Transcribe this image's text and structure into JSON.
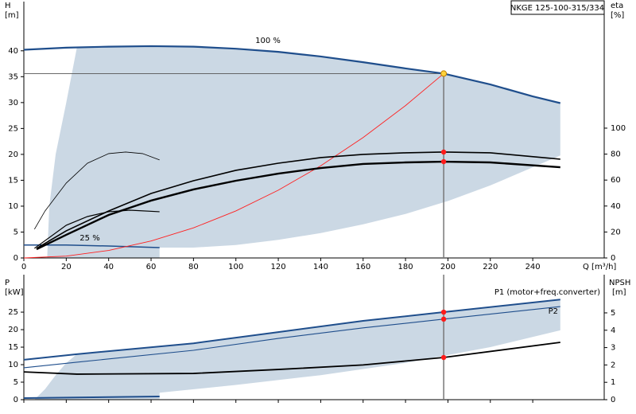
{
  "chart_data": [
    {
      "type": "line",
      "title": "NKGE 125-100-315/334",
      "y_label": "H",
      "y_unit": "[m]",
      "y2_label": "eta",
      "y2_unit": "[%]",
      "x_label": "Q [m³/h]",
      "xlim": [
        0,
        273.7
      ],
      "ylim": [
        0,
        49.5
      ],
      "y2lim": [
        0,
        197.5
      ],
      "xticks": [
        0,
        20,
        40,
        60,
        80,
        100,
        120,
        140,
        160,
        180,
        200,
        220,
        240
      ],
      "yticks": [
        0,
        5,
        10,
        15,
        20,
        25,
        30,
        35,
        40
      ],
      "y2ticks": [
        0,
        20,
        40,
        60,
        80,
        100
      ],
      "annotations": [
        "100 %",
        "25 %"
      ],
      "areas": [
        {
          "color": "#cbd8e4",
          "x": [
            11,
            12,
            15,
            20,
            25,
            40,
            60,
            80,
            100,
            120,
            140,
            160,
            180,
            200,
            220,
            240,
            253,
            253,
            240,
            220,
            200,
            180,
            160,
            140,
            120,
            100,
            80,
            64,
            64
          ],
          "values": [
            0,
            10,
            20,
            30,
            40.6,
            40.8,
            40.9,
            40.8,
            40.4,
            39.8,
            38.9,
            37.8,
            36.6,
            35.4,
            33.5,
            31.2,
            29.9,
            19.8,
            17.5,
            14,
            11,
            8.5,
            6.5,
            4.8,
            3.5,
            2.5,
            2,
            2,
            0
          ]
        }
      ],
      "series": [
        {
          "color": "#1f4e8c",
          "width": 2.2,
          "x": [
            0,
            20,
            40,
            60,
            80,
            100,
            120,
            140,
            160,
            180,
            198,
            220,
            240,
            253
          ],
          "values": [
            40.2,
            40.6,
            40.8,
            40.9,
            40.8,
            40.4,
            39.8,
            38.9,
            37.8,
            36.6,
            35.6,
            33.5,
            31.2,
            29.9
          ]
        },
        {
          "color": "#1f4e8c",
          "width": 1.5,
          "x": [
            0,
            20,
            40,
            64
          ],
          "values": [
            2.5,
            2.5,
            2.3,
            2
          ]
        },
        {
          "color": "#ff2020",
          "width": 0.9,
          "x": [
            0,
            20,
            40,
            60,
            80,
            100,
            120,
            140,
            160,
            180,
            198
          ],
          "values": [
            0,
            0.36,
            1.45,
            3.27,
            5.81,
            9.08,
            13.08,
            17.8,
            23.25,
            29.42,
            35.6
          ]
        },
        {
          "color": "#000000",
          "width": 1.6,
          "axis": "y2",
          "x": [
            6,
            20,
            40,
            60,
            80,
            100,
            120,
            140,
            160,
            180,
            198,
            220,
            253
          ],
          "values": [
            7.4,
            20.9,
            36.2,
            49.7,
            59.5,
            67.5,
            73.0,
            77.3,
            79.8,
            81.0,
            81.6,
            81.0,
            76.1
          ]
        },
        {
          "color": "#000000",
          "width": 2.4,
          "axis": "y2",
          "x": [
            6,
            20,
            40,
            60,
            80,
            100,
            120,
            140,
            160,
            180,
            198,
            220,
            253
          ],
          "values": [
            6.7,
            17.8,
            33.1,
            44.2,
            52.8,
            59.5,
            65.0,
            69.3,
            72.4,
            73.6,
            74.2,
            73.6,
            69.9
          ]
        },
        {
          "color": "#000000",
          "width": 0.8,
          "axis": "y2",
          "x": [
            5,
            10,
            20,
            30,
            40,
            48,
            56,
            64
          ],
          "values": [
            22.1,
            36.2,
            57.7,
            73.0,
            80.4,
            81.6,
            80.4,
            75.5
          ]
        },
        {
          "color": "#000000",
          "width": 1.2,
          "axis": "y2",
          "x": [
            5,
            20,
            30,
            40,
            50,
            64
          ],
          "values": [
            7.4,
            25.2,
            31.9,
            35.6,
            36.8,
            35.6
          ]
        }
      ],
      "duty_point": {
        "q": 198,
        "h": 35.6,
        "eta": 81.6,
        "eta_pump": 74.2
      }
    },
    {
      "type": "line",
      "y_label": "P",
      "y_unit": "[kW]",
      "y2_label": "NPSH",
      "y2_unit": "[m]",
      "xlim": [
        0,
        273.7
      ],
      "ylim": [
        0,
        35.7
      ],
      "y2lim": [
        0,
        7.2
      ],
      "yticks": [
        0,
        5,
        10,
        15,
        20,
        25
      ],
      "y2ticks": [
        0,
        1,
        2,
        3,
        4,
        5
      ],
      "annotations": [
        "P1 (motor+freq.converter)",
        "P2"
      ],
      "areas": [
        {
          "color": "#cbd8e4",
          "x": [
            5,
            10,
            15,
            20,
            25,
            80,
            120,
            160,
            198,
            253,
            253,
            220,
            180,
            140,
            100,
            64,
            64
          ],
          "values": [
            0,
            3,
            7,
            10.5,
            13,
            16.1,
            19.3,
            22.5,
            25,
            28.6,
            19.8,
            15,
            10.5,
            7,
            4.2,
            2,
            0
          ]
        }
      ],
      "series": [
        {
          "color": "#1f4e8c",
          "width": 2,
          "x": [
            0,
            25,
            80,
            120,
            160,
            198,
            253
          ],
          "values": [
            11.4,
            13,
            16.1,
            19.3,
            22.5,
            25,
            28.6
          ]
        },
        {
          "color": "#1f4e8c",
          "width": 1.1,
          "x": [
            0,
            25,
            80,
            120,
            160,
            198,
            253
          ],
          "values": [
            9.1,
            10.7,
            14.1,
            17.5,
            20.5,
            23,
            26.6
          ]
        },
        {
          "color": "#1f4e8c",
          "width": 2,
          "x": [
            0,
            64
          ],
          "values": [
            0.45,
            0.9
          ]
        },
        {
          "color": "#000000",
          "width": 1.8,
          "axis": "y2",
          "x": [
            0,
            25,
            80,
            120,
            160,
            198,
            253
          ],
          "values": [
            1.6,
            1.47,
            1.51,
            1.74,
            2.0,
            2.43,
            3.3
          ]
        }
      ],
      "duty_point": {
        "q": 198,
        "p1": 25,
        "p2": 23,
        "npsh": 2.43
      }
    }
  ]
}
